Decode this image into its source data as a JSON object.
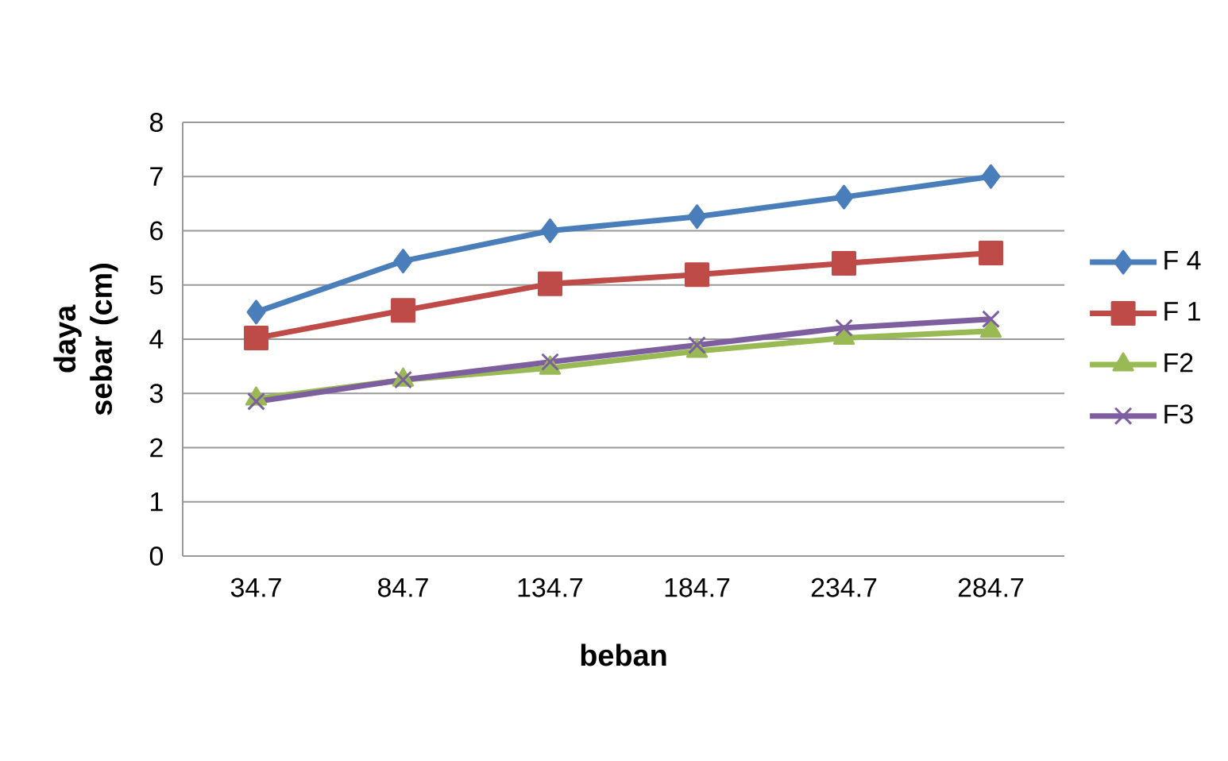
{
  "chart_data": {
    "type": "line",
    "xlabel": "beban",
    "ylabel": "daya sebar (cm)",
    "categories": [
      "34.7",
      "84.7",
      "134.7",
      "184.7",
      "234.7",
      "284.7"
    ],
    "ylim": [
      0,
      8
    ],
    "yticks": [
      0,
      1,
      2,
      3,
      4,
      5,
      6,
      7,
      8
    ],
    "grid": "y",
    "legend": "right",
    "series": [
      {
        "name": "F 4",
        "color": "#4a7ebb",
        "marker": "diamond",
        "values": [
          4.5,
          5.44,
          6.0,
          6.26,
          6.62,
          7.0
        ]
      },
      {
        "name": "F 1",
        "color": "#be4b48",
        "marker": "square",
        "values": [
          4.02,
          4.53,
          5.02,
          5.19,
          5.4,
          5.59
        ]
      },
      {
        "name": "F2",
        "color": "#98b954",
        "marker": "triangle",
        "values": [
          2.9,
          3.25,
          3.47,
          3.78,
          4.02,
          4.15
        ]
      },
      {
        "name": "F3",
        "color": "#7d5fa0",
        "marker": "cross",
        "values": [
          2.85,
          3.25,
          3.58,
          3.89,
          4.21,
          4.37
        ]
      }
    ]
  }
}
